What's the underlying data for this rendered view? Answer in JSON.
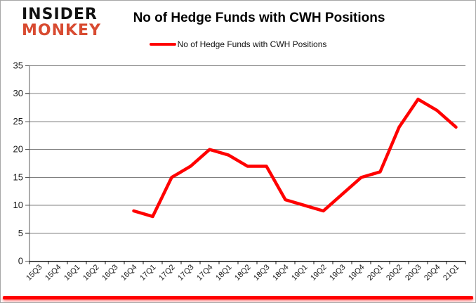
{
  "branding": {
    "line1": "INSIDER",
    "line2": "MONKEY",
    "monkey_color": "#d84b31"
  },
  "header": {
    "title": "No of Hedge Funds with CWH Positions"
  },
  "legend": {
    "label": "No of Hedge Funds with CWH Positions",
    "line_color": "#ff0000"
  },
  "chart_data": {
    "type": "line",
    "title": "No of Hedge Funds with CWH Positions",
    "categories": [
      "15Q3",
      "15Q4",
      "16Q1",
      "16Q2",
      "16Q3",
      "16Q4",
      "17Q1",
      "17Q2",
      "17Q3",
      "17Q4",
      "18Q1",
      "18Q2",
      "18Q3",
      "18Q4",
      "19Q1",
      "19Q2",
      "19Q3",
      "19Q4",
      "20Q1",
      "20Q2",
      "20Q3",
      "20Q4",
      "21Q1"
    ],
    "series": [
      {
        "name": "No of Hedge Funds with CWH Positions",
        "color": "#ff0000",
        "values": [
          null,
          null,
          null,
          null,
          null,
          9,
          8,
          15,
          17,
          20,
          19,
          17,
          17,
          11,
          10,
          9,
          12,
          15,
          16,
          24,
          29,
          27,
          24
        ]
      }
    ],
    "ylim": [
      0,
      35
    ],
    "ytick_interval": 5,
    "yticks": [
      0,
      5,
      10,
      15,
      20,
      25,
      30,
      35
    ],
    "grid": true,
    "legend_position": "top",
    "xlabel": "",
    "ylabel": "",
    "colors": {
      "gridline": "#808080",
      "y_axis": "#595959",
      "x_axis": "#1a1a1a",
      "tick_label": "#1a1a1a"
    }
  }
}
